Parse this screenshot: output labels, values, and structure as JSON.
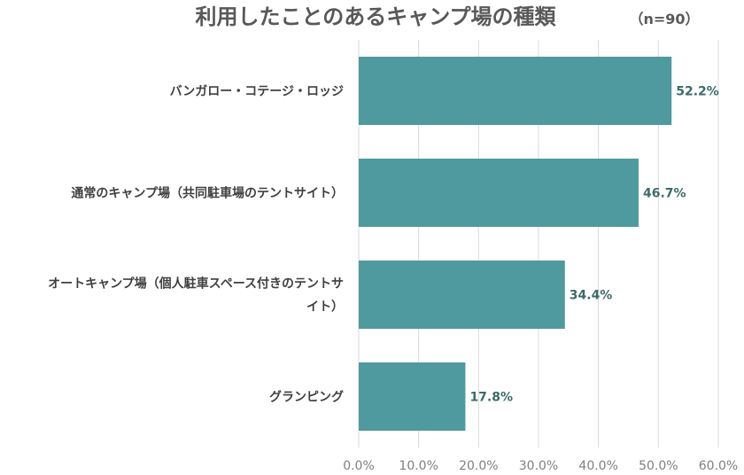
{
  "chart_data": {
    "type": "bar",
    "orientation": "horizontal",
    "title": "利用したことのあるキャンプ場の種類",
    "subtitle": "（n=90）",
    "categories": [
      [
        "バンガロー・コテージ・ロッジ"
      ],
      [
        "通常のキャンプ場（共同駐車場のテントサイト）"
      ],
      [
        "オートキャンプ場（個人駐車スペース付きのテントサ",
        "イト）"
      ],
      [
        "グランピング"
      ]
    ],
    "values": [
      52.2,
      46.7,
      34.4,
      17.8
    ],
    "value_labels": [
      "52.2%",
      "46.7%",
      "34.4%",
      "17.8%"
    ],
    "x_ticks": [
      0,
      10,
      20,
      30,
      40,
      50,
      60
    ],
    "x_tick_labels": [
      "0.0%",
      "10.0%",
      "20.0%",
      "30.0%",
      "40.0%",
      "50.0%",
      "60.0%"
    ],
    "xlim": [
      0,
      60
    ],
    "grid": "vertical",
    "bar_color": "#4e9a9e"
  }
}
